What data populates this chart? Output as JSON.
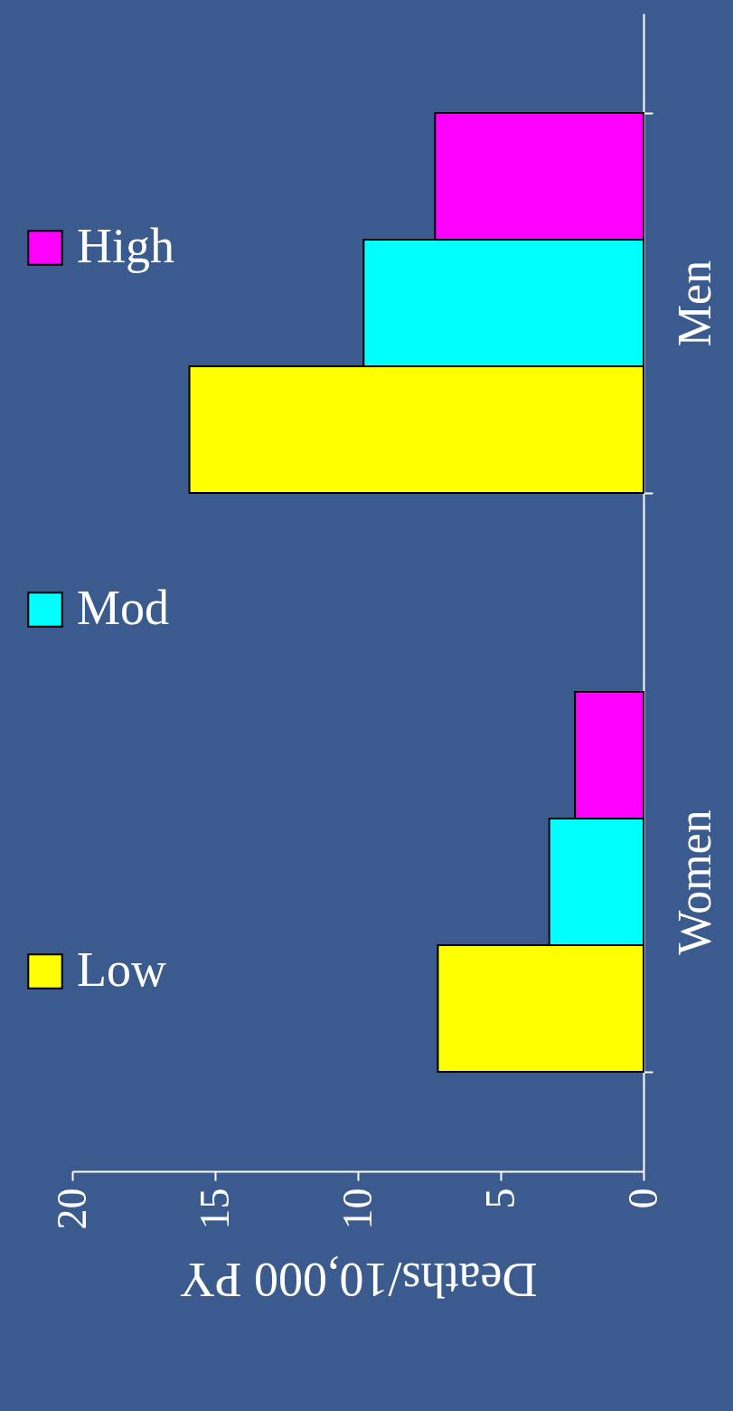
{
  "chart_data": {
    "type": "bar",
    "orientation": "horizontal",
    "xlabel": "Deaths/10,000 PY",
    "categories": [
      "Men",
      "Women"
    ],
    "series": [
      {
        "name": "Low",
        "color": "#ffff00",
        "values": [
          15.9,
          7.2
        ]
      },
      {
        "name": "Mod",
        "color": "#00ffff",
        "values": [
          9.8,
          3.3
        ]
      },
      {
        "name": "High",
        "color": "#ff00ff",
        "values": [
          7.3,
          2.4
        ]
      }
    ],
    "xlim": [
      20,
      0
    ],
    "xticks": [
      20,
      15,
      10,
      5,
      0
    ],
    "grid": false,
    "legend": "left"
  }
}
